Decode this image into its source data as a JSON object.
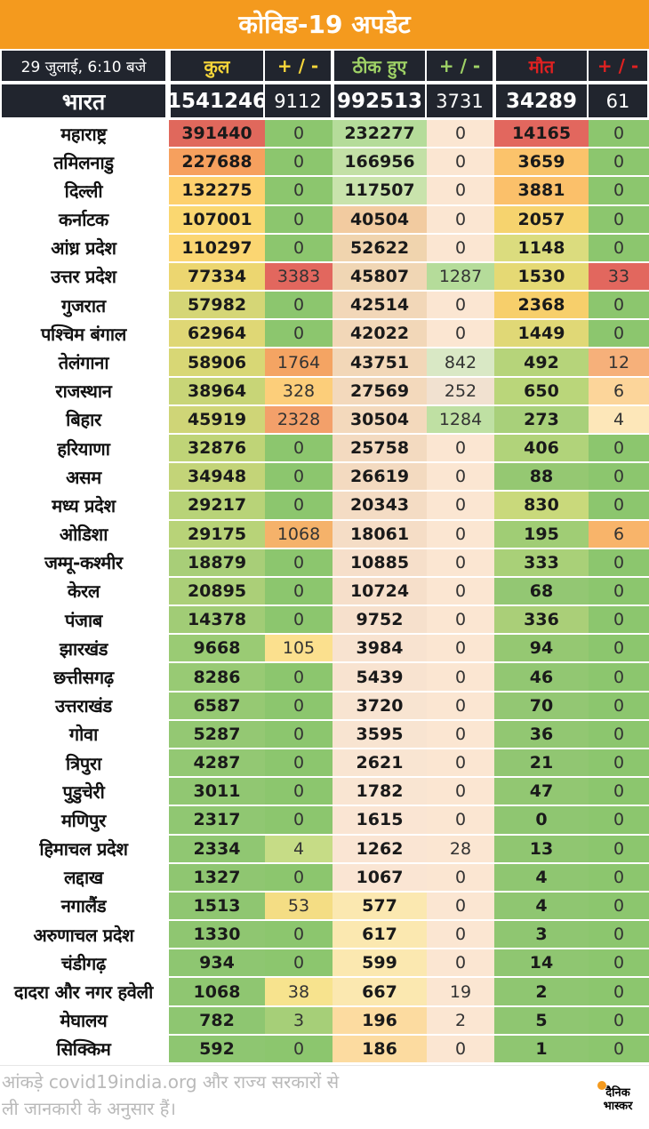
{
  "title": "कोविड-19 अपडेट",
  "header": {
    "date": "29 जुलाई, 6:10 बजे",
    "total": "कुल",
    "delta_label": "+ / -",
    "recovered": "ठीक हुए",
    "deaths": "मौत"
  },
  "national": {
    "name": "भारत",
    "total": "1541246",
    "total_delta": "9112",
    "recovered": "992513",
    "recovered_delta": "3731",
    "deaths": "34289",
    "deaths_delta": "61"
  },
  "columns": [
    "name",
    "total",
    "total_delta",
    "recovered",
    "recovered_delta",
    "deaths",
    "deaths_delta"
  ],
  "states": [
    [
      "महाराष्ट्र",
      "391440",
      "0",
      "232277",
      "0",
      "14165",
      "0"
    ],
    [
      "तमिलनाडु",
      "227688",
      "0",
      "166956",
      "0",
      "3659",
      "0"
    ],
    [
      "दिल्ली",
      "132275",
      "0",
      "117507",
      "0",
      "3881",
      "0"
    ],
    [
      "कर्नाटक",
      "107001",
      "0",
      "40504",
      "0",
      "2057",
      "0"
    ],
    [
      "आंध्र प्रदेश",
      "110297",
      "0",
      "52622",
      "0",
      "1148",
      "0"
    ],
    [
      "उत्तर प्रदेश",
      "77334",
      "3383",
      "45807",
      "1287",
      "1530",
      "33"
    ],
    [
      "गुजरात",
      "57982",
      "0",
      "42514",
      "0",
      "2368",
      "0"
    ],
    [
      "पश्चिम बंगाल",
      "62964",
      "0",
      "42022",
      "0",
      "1449",
      "0"
    ],
    [
      "तेलंगाना",
      "58906",
      "1764",
      "43751",
      "842",
      "492",
      "12"
    ],
    [
      "राजस्थान",
      "38964",
      "328",
      "27569",
      "252",
      "650",
      "6"
    ],
    [
      "बिहार",
      "45919",
      "2328",
      "30504",
      "1284",
      "273",
      "4"
    ],
    [
      "हरियाणा",
      "32876",
      "0",
      "25758",
      "0",
      "406",
      "0"
    ],
    [
      "असम",
      "34948",
      "0",
      "26619",
      "0",
      "88",
      "0"
    ],
    [
      "मध्य प्रदेश",
      "29217",
      "0",
      "20343",
      "0",
      "830",
      "0"
    ],
    [
      "ओडिशा",
      "29175",
      "1068",
      "18061",
      "0",
      "195",
      "6"
    ],
    [
      "जम्मू-कश्मीर",
      "18879",
      "0",
      "10885",
      "0",
      "333",
      "0"
    ],
    [
      "केरल",
      "20895",
      "0",
      "10724",
      "0",
      "68",
      "0"
    ],
    [
      "पंजाब",
      "14378",
      "0",
      "9752",
      "0",
      "336",
      "0"
    ],
    [
      "झारखंड",
      "9668",
      "105",
      "3984",
      "0",
      "94",
      "0"
    ],
    [
      "छत्तीसगढ़",
      "8286",
      "0",
      "5439",
      "0",
      "46",
      "0"
    ],
    [
      "उत्तराखंड",
      "6587",
      "0",
      "3720",
      "0",
      "70",
      "0"
    ],
    [
      "गोवा",
      "5287",
      "0",
      "3595",
      "0",
      "36",
      "0"
    ],
    [
      "त्रिपुरा",
      "4287",
      "0",
      "2621",
      "0",
      "21",
      "0"
    ],
    [
      "पुडुचेरी",
      "3011",
      "0",
      "1782",
      "0",
      "47",
      "0"
    ],
    [
      "मणिपुर",
      "2317",
      "0",
      "1615",
      "0",
      "0",
      "0"
    ],
    [
      "हिमाचल प्रदेश",
      "2334",
      "4",
      "1262",
      "28",
      "13",
      "0"
    ],
    [
      "लद्दाख",
      "1327",
      "0",
      "1067",
      "0",
      "4",
      "0"
    ],
    [
      "नगालैंड",
      "1513",
      "53",
      "577",
      "0",
      "4",
      "0"
    ],
    [
      "अरुणाचल प्रदेश",
      "1330",
      "0",
      "617",
      "0",
      "3",
      "0"
    ],
    [
      "चंडीगढ़",
      "934",
      "0",
      "599",
      "0",
      "14",
      "0"
    ],
    [
      "दादरा और नगर हवेली",
      "1068",
      "38",
      "667",
      "19",
      "2",
      "0"
    ],
    [
      "मेघालय",
      "782",
      "3",
      "196",
      "2",
      "5",
      "0"
    ],
    [
      "सिक्किम",
      "592",
      "0",
      "186",
      "0",
      "1",
      "0"
    ]
  ],
  "cell_colors": [
    [
      "#e0685c",
      "#8cc66e",
      "#b5dc9a",
      "#fbe6d2",
      "#e2675e",
      "#8cc66e"
    ],
    [
      "#f6a05e",
      "#8cc66e",
      "#c3e0a6",
      "#fbe6d2",
      "#fbc36b",
      "#8cc66e"
    ],
    [
      "#fdd06d",
      "#8cc66e",
      "#c9e3ac",
      "#fbe6d2",
      "#fbc06a",
      "#8cc66e"
    ],
    [
      "#fad770",
      "#8cc66e",
      "#f2cba0",
      "#fbe6d2",
      "#f6d36e",
      "#8cc66e"
    ],
    [
      "#fbd672",
      "#8cc66e",
      "#f0d4ae",
      "#fbe6d2",
      "#dbdc7e",
      "#8cc66e"
    ],
    [
      "#ecd670",
      "#e2675e",
      "#f0d6b4",
      "#b5dc9a",
      "#e5d974",
      "#e2675e"
    ],
    [
      "#d5d676",
      "#8cc66e",
      "#f2d7b8",
      "#fbe6d2",
      "#f7cf6b",
      "#8cc66e"
    ],
    [
      "#dfd775",
      "#8cc66e",
      "#f2d7b8",
      "#fbe6d2",
      "#e0d876",
      "#8cc66e"
    ],
    [
      "#d8d775",
      "#f4a463",
      "#f2d7b8",
      "#d9e8c5",
      "#b6d47a",
      "#f6b07a"
    ],
    [
      "#c8d577",
      "#fcce7a",
      "#f3d9bc",
      "#f1e1d0",
      "#bad67a",
      "#fcd59a"
    ],
    [
      "#cfd577",
      "#f3a06a",
      "#f3d9bc",
      "#bfe0a3",
      "#a8d07a",
      "#fde7b9"
    ],
    [
      "#bfd477",
      "#8cc66e",
      "#f3dac0",
      "#fbe6d2",
      "#b1d37a",
      "#8cc66e"
    ],
    [
      "#c3d478",
      "#8cc66e",
      "#f3dac0",
      "#fbe6d2",
      "#95c872",
      "#8cc66e"
    ],
    [
      "#b8d378",
      "#8cc66e",
      "#f4dcc4",
      "#fbe6d2",
      "#c9d97b",
      "#8cc66e"
    ],
    [
      "#b8d378",
      "#f5b26a",
      "#f5ddc6",
      "#fbe6d2",
      "#a0cd75",
      "#f8b46a"
    ],
    [
      "#a8ce78",
      "#8cc66e",
      "#f6dfca",
      "#fbe6d2",
      "#a9d078",
      "#8cc66e"
    ],
    [
      "#abcf78",
      "#8cc66e",
      "#f6dfca",
      "#fbe6d2",
      "#93c773",
      "#8cc66e"
    ],
    [
      "#a1cc76",
      "#8cc66e",
      "#f6e0cc",
      "#fbe6d2",
      "#aacf78",
      "#8cc66e"
    ],
    [
      "#9acb74",
      "#fbe08e",
      "#f8e3d0",
      "#fbe6d2",
      "#95c872",
      "#8cc66e"
    ],
    [
      "#98ca74",
      "#8cc66e",
      "#f8e3d0",
      "#fbe6d2",
      "#92c772",
      "#8cc66e"
    ],
    [
      "#96c973",
      "#8cc66e",
      "#f8e4d1",
      "#fbe6d2",
      "#93c773",
      "#8cc66e"
    ],
    [
      "#94c873",
      "#8cc66e",
      "#f8e4d1",
      "#fbe6d2",
      "#92c772",
      "#8cc66e"
    ],
    [
      "#93c873",
      "#8cc66e",
      "#f9e5d2",
      "#fbe6d2",
      "#91c672",
      "#8cc66e"
    ],
    [
      "#91c772",
      "#8cc66e",
      "#f9e5d2",
      "#fbe6d2",
      "#92c772",
      "#8cc66e"
    ],
    [
      "#90c772",
      "#8cc66e",
      "#fae5d3",
      "#fbe6d2",
      "#8fc671",
      "#8cc66e"
    ],
    [
      "#90c772",
      "#c6dc86",
      "#fae5d3",
      "#fbe6d2",
      "#90c671",
      "#8cc66e"
    ],
    [
      "#8fc671",
      "#8cc66e",
      "#fae5d3",
      "#fbe6d2",
      "#8fc671",
      "#8cc66e"
    ],
    [
      "#8fc671",
      "#f4dd84",
      "#fbe8b0",
      "#fbe6d2",
      "#8fc671",
      "#8cc66e"
    ],
    [
      "#8fc671",
      "#8cc66e",
      "#fbe8b0",
      "#fbe6d2",
      "#8fc671",
      "#8cc66e"
    ],
    [
      "#8ec671",
      "#8cc66e",
      "#fbe8b0",
      "#fbe6d2",
      "#8fc671",
      "#8cc66e"
    ],
    [
      "#8fc671",
      "#f7e38e",
      "#fbe8b0",
      "#fbe6d2",
      "#8fc671",
      "#8cc66e"
    ],
    [
      "#8ec671",
      "#a6cf78",
      "#fcdba0",
      "#fbe6d2",
      "#8fc671",
      "#8cc66e"
    ],
    [
      "#8ec671",
      "#8cc66e",
      "#fcdba0",
      "#fbe6d2",
      "#8fc671",
      "#8cc66e"
    ]
  ],
  "footer": {
    "line1": "आंकड़े covid19india.org और राज्य सरकारों से",
    "line2": "ली जानकारी के अनुसार हैं।"
  },
  "logo": {
    "line1": "दैनिक",
    "line2": "भास्कर"
  }
}
